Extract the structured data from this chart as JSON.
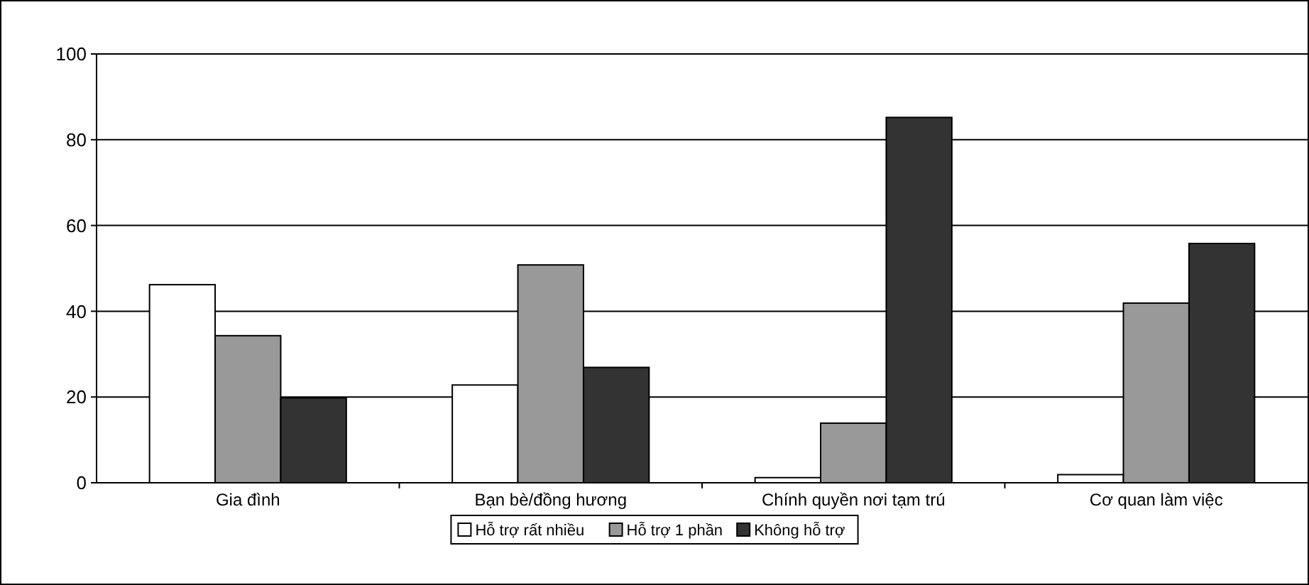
{
  "chart_data": {
    "type": "bar",
    "categories": [
      "Gia đình",
      "Bạn bè/đồng hương",
      "Chính quyền nơi tạm trú",
      "Cơ quan làm việc"
    ],
    "series": [
      {
        "name": "Hỗ trợ rất nhiều",
        "color": "#ffffff",
        "values": [
          46.2,
          22.8,
          1.2,
          1.9
        ]
      },
      {
        "name": "Hỗ trợ 1 phần",
        "color": "#999999",
        "values": [
          34.3,
          50.8,
          13.9,
          41.9
        ]
      },
      {
        "name": "Không hỗ trợ",
        "color": "#333333",
        "values": [
          19.8,
          26.9,
          85.2,
          55.8
        ]
      }
    ],
    "ylim": [
      0,
      100
    ],
    "yticks": [
      0,
      20,
      40,
      60,
      80,
      100
    ],
    "grid": "y",
    "legend": "bottom"
  }
}
